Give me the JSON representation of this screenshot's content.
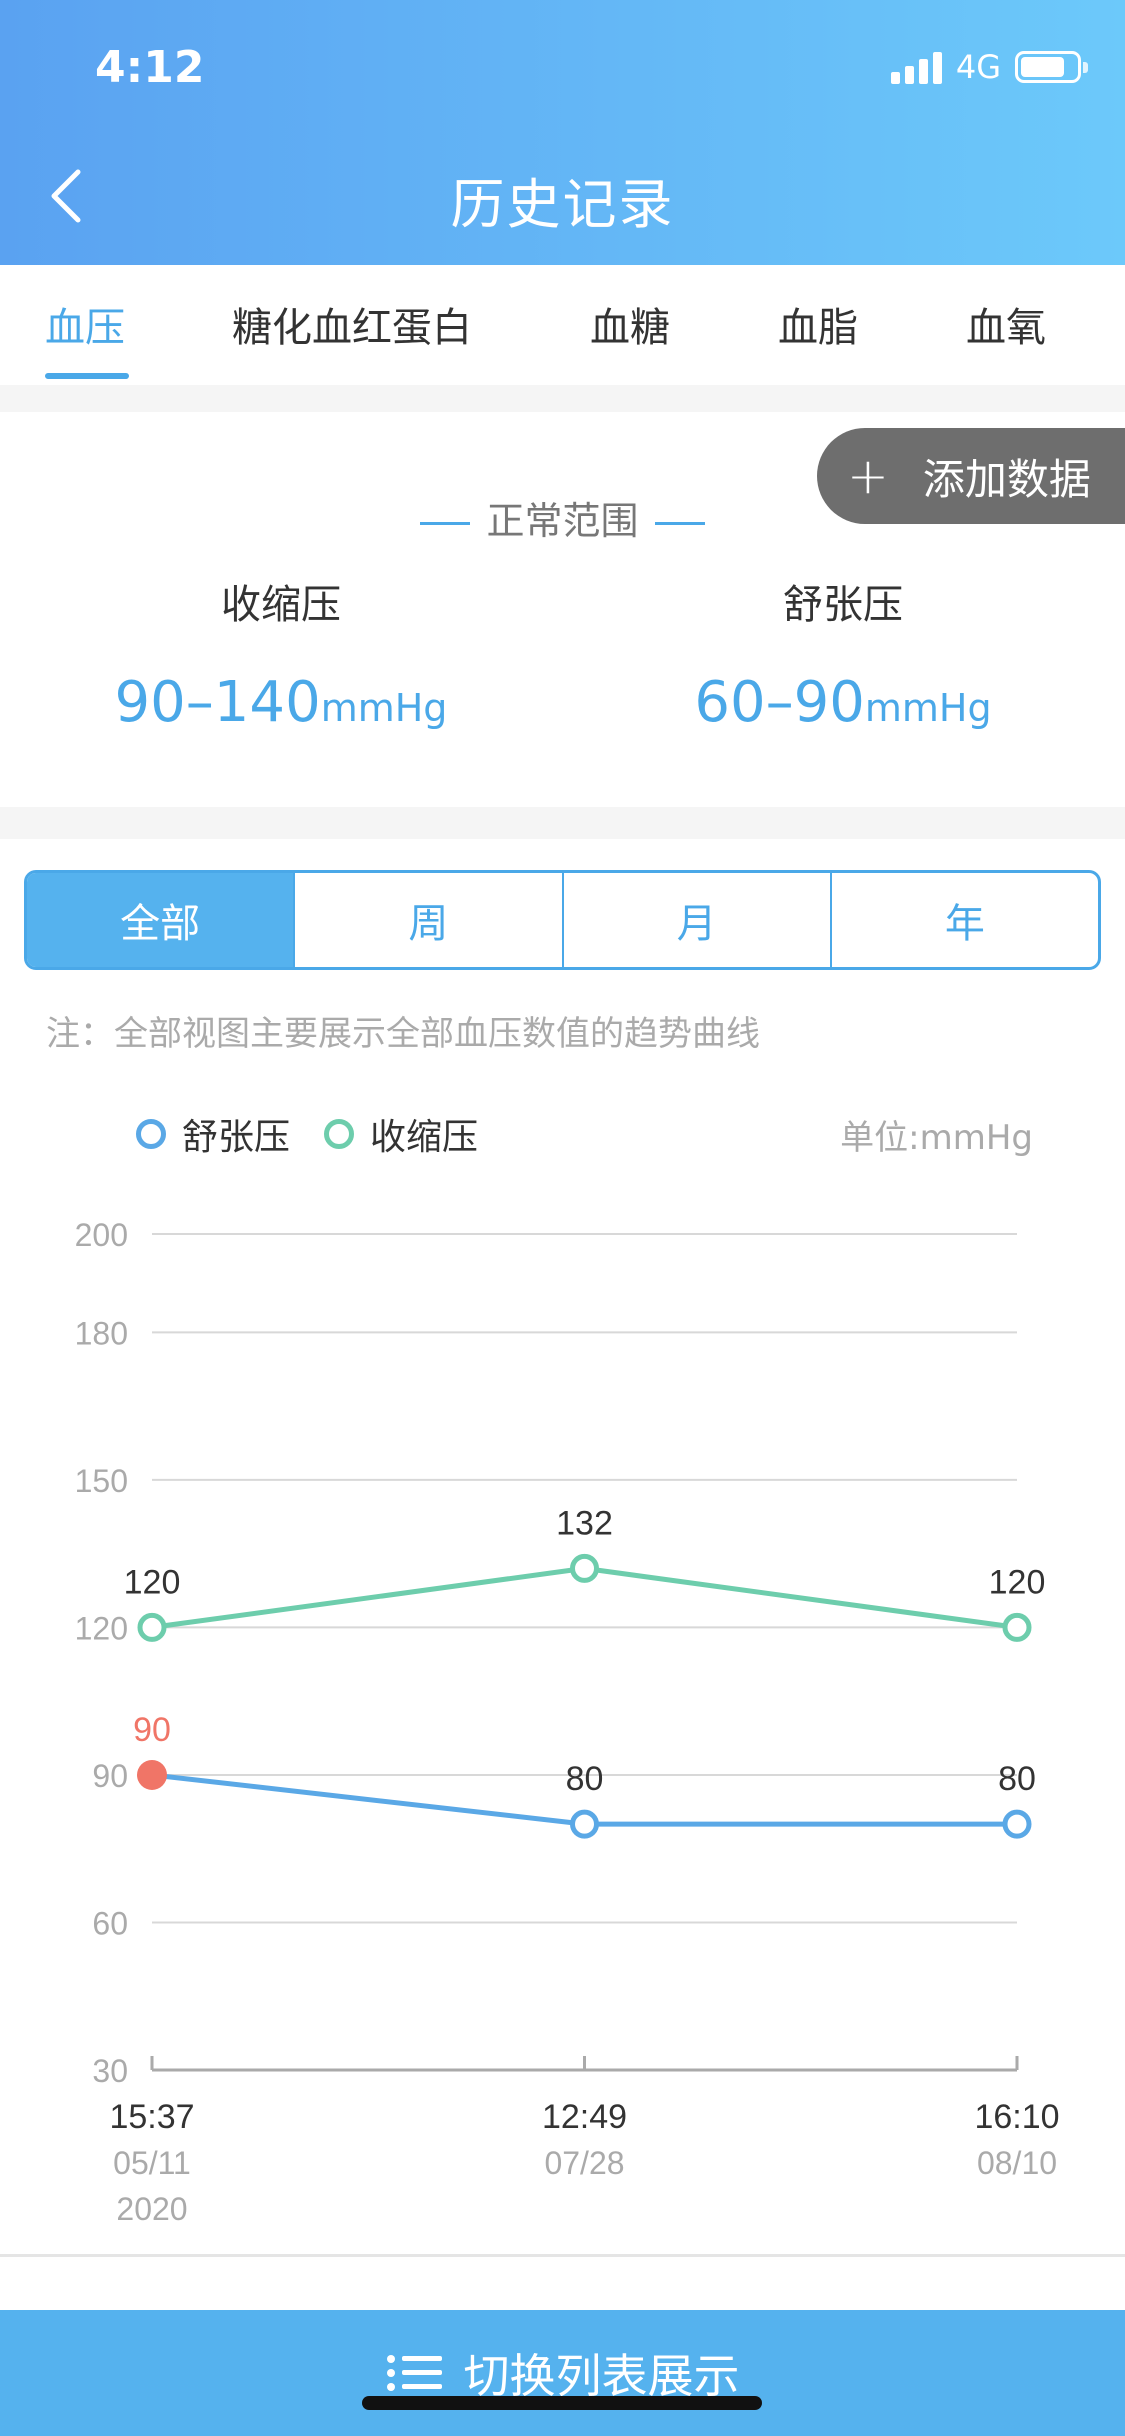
{
  "status": {
    "time": "4:12",
    "network": "4G",
    "battery_level": 0.8
  },
  "header": {
    "title": "历史记录"
  },
  "tabs": [
    {
      "label": "血压",
      "active": true
    },
    {
      "label": "糖化血红蛋白",
      "active": false
    },
    {
      "label": "血糖",
      "active": false
    },
    {
      "label": "血脂",
      "active": false
    },
    {
      "label": "血氧",
      "active": false
    }
  ],
  "add_data": {
    "icon": "+",
    "label": "添加数据"
  },
  "normal_range": {
    "title": "正常范围",
    "systolic": {
      "label": "收缩压",
      "value": "90–140",
      "unit": "mmHg"
    },
    "diastolic": {
      "label": "舒张压",
      "value": "60–90",
      "unit": "mmHg"
    }
  },
  "segments": [
    {
      "label": "全部",
      "active": true
    },
    {
      "label": "周",
      "active": false
    },
    {
      "label": "月",
      "active": false
    },
    {
      "label": "年",
      "active": false
    }
  ],
  "note": "注：全部视图主要展示全部血压数值的趋势曲线",
  "legend": [
    {
      "label": "舒张压",
      "color": "#5aa8e6"
    },
    {
      "label": "收缩压",
      "color": "#6dcdac"
    }
  ],
  "unit_label": "单位:mmHg",
  "chart_data": {
    "type": "line",
    "y_ticks": [
      200,
      180,
      150,
      120,
      90,
      60,
      30
    ],
    "ylim": [
      30,
      200
    ],
    "x": [
      {
        "time": "15:37",
        "date": "05/11",
        "year": "2020"
      },
      {
        "time": "12:49",
        "date": "07/28",
        "year": ""
      },
      {
        "time": "16:10",
        "date": "08/10",
        "year": ""
      }
    ],
    "series": [
      {
        "name": "收缩压",
        "color": "#6dcdac",
        "values": [
          120,
          132,
          120
        ]
      },
      {
        "name": "舒张压",
        "color": "#5aa8e6",
        "values": [
          90,
          80,
          80
        ],
        "highlight_index": 0,
        "highlight_color": "#f07567"
      }
    ]
  },
  "bottom_button": {
    "label": "切换列表展示"
  }
}
